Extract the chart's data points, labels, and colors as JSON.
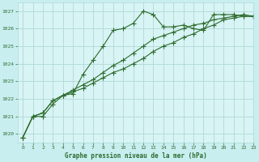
{
  "title": "Graphe pression niveau de la mer (hPa)",
  "bg_color": "#c8eef0",
  "plot_bg_color": "#d8f4f4",
  "line_color": "#2d6b2d",
  "grid_color": "#b0d8d8",
  "xlim": [
    -0.5,
    23
  ],
  "ylim": [
    1019.5,
    1027.5
  ],
  "yticks": [
    1020,
    1021,
    1022,
    1023,
    1024,
    1025,
    1026,
    1027
  ],
  "xticks": [
    0,
    1,
    2,
    3,
    4,
    5,
    6,
    7,
    8,
    9,
    10,
    11,
    12,
    13,
    14,
    15,
    16,
    17,
    18,
    19,
    20,
    21,
    22,
    23
  ],
  "series": [
    {
      "x": [
        0,
        1,
        2,
        3,
        4,
        5,
        6,
        7,
        8,
        9,
        10,
        11,
        12,
        13,
        14,
        15,
        16,
        17,
        18,
        19,
        20,
        21,
        22,
        23
      ],
      "y": [
        1019.8,
        1021.0,
        1021.0,
        1021.7,
        1022.2,
        1022.3,
        1023.4,
        1024.2,
        1025.0,
        1025.9,
        1026.0,
        1026.3,
        1027.0,
        1026.8,
        1026.1,
        1026.1,
        1026.2,
        1026.0,
        1025.9,
        1026.8,
        1026.8,
        1026.8,
        1026.7,
        1026.7
      ],
      "has_markers": true
    },
    {
      "x": [
        0,
        1,
        2,
        3,
        4,
        5,
        6,
        7,
        8,
        9,
        10,
        11,
        12,
        13,
        14,
        15,
        16,
        17,
        18,
        19,
        20,
        21,
        22,
        23
      ],
      "y": [
        1019.8,
        1021.0,
        1021.2,
        1021.9,
        1022.2,
        1022.5,
        1022.8,
        1023.1,
        1023.5,
        1023.9,
        1024.2,
        1024.6,
        1025.0,
        1025.4,
        1025.6,
        1025.8,
        1026.0,
        1026.2,
        1026.3,
        1026.5,
        1026.6,
        1026.7,
        1026.8,
        1026.7
      ],
      "has_markers": true
    },
    {
      "x": [
        0,
        1,
        2,
        3,
        4,
        5,
        6,
        7,
        8,
        9,
        10,
        11,
        12,
        13,
        14,
        15,
        16,
        17,
        18,
        19,
        20,
        21,
        22,
        23
      ],
      "y": [
        1019.8,
        1021.0,
        1021.2,
        1021.9,
        1022.2,
        1022.4,
        1022.6,
        1022.9,
        1023.2,
        1023.5,
        1023.7,
        1024.0,
        1024.3,
        1024.7,
        1025.0,
        1025.2,
        1025.5,
        1025.7,
        1026.0,
        1026.2,
        1026.5,
        1026.6,
        1026.7,
        1026.7
      ],
      "has_markers": true
    }
  ]
}
